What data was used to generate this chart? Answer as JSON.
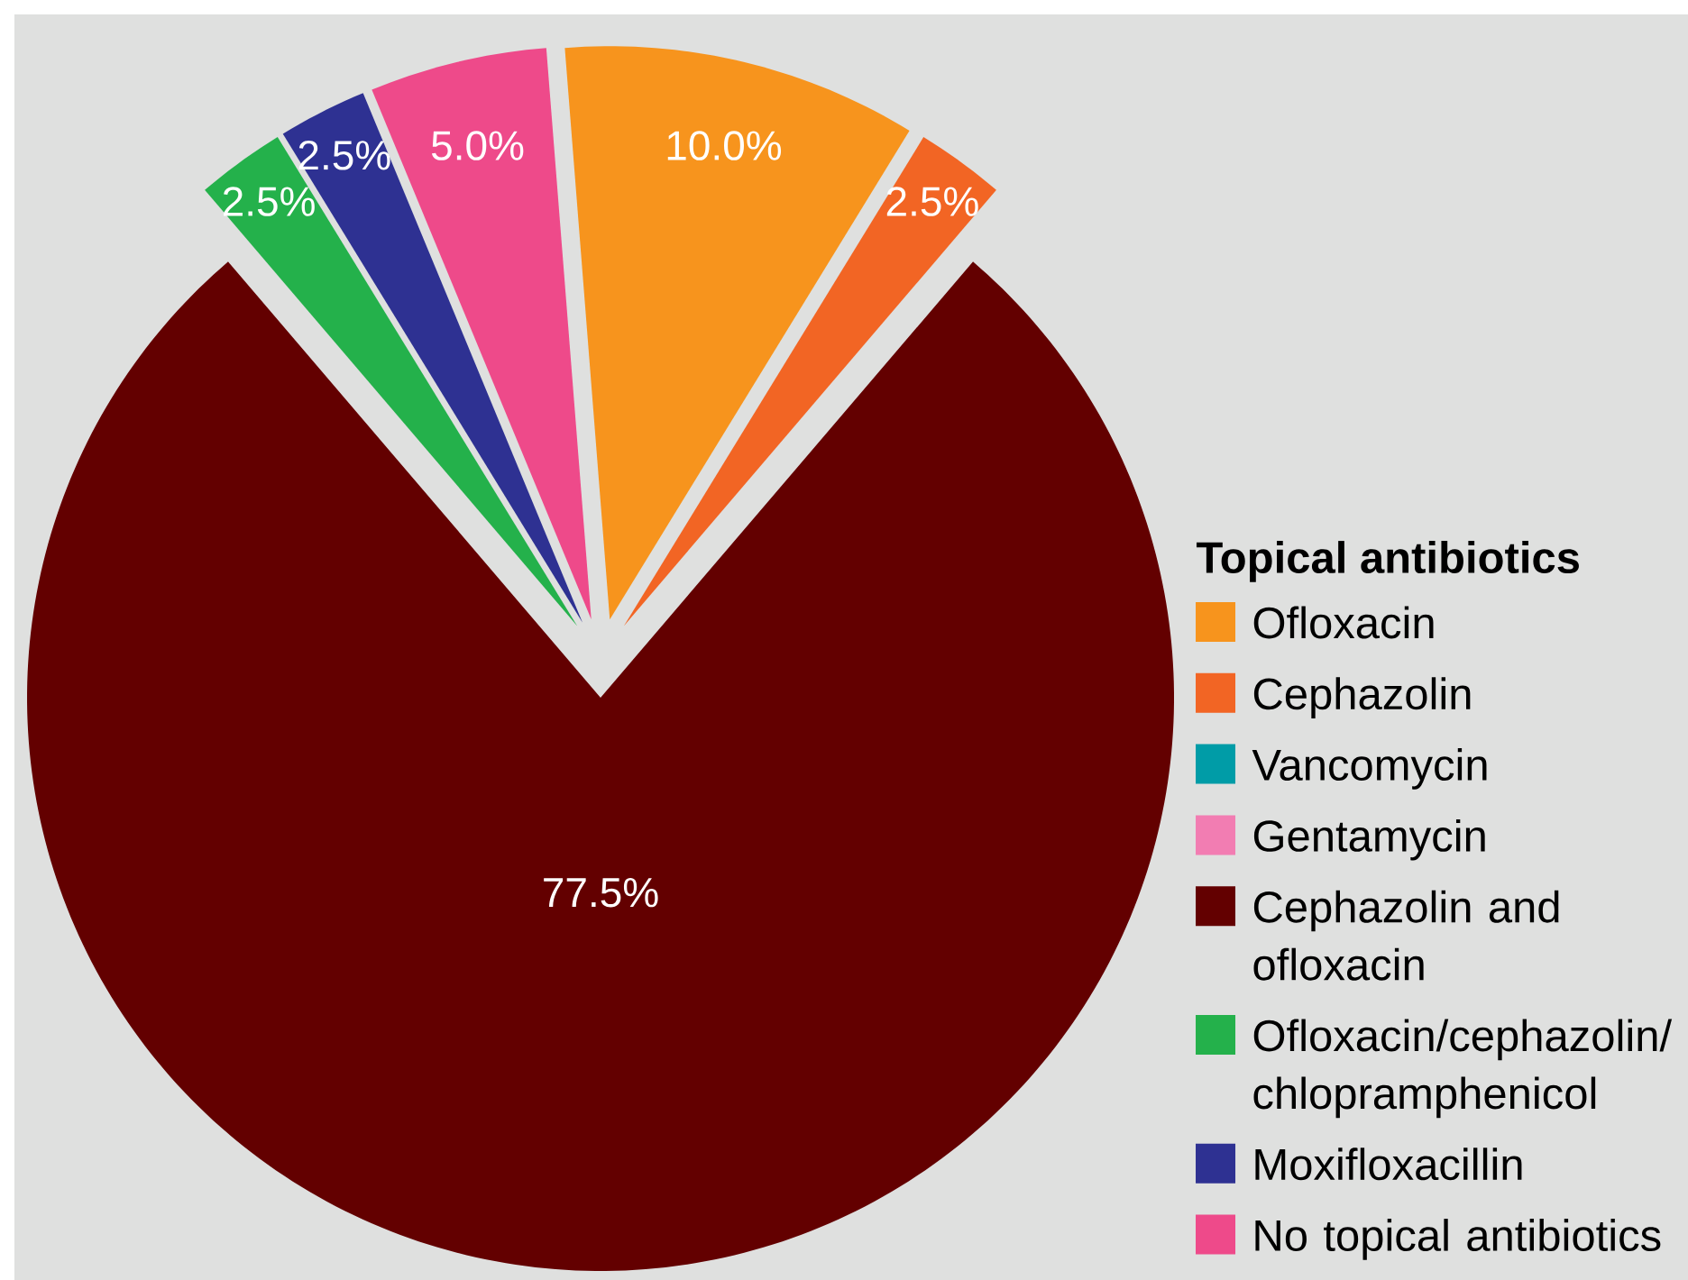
{
  "chart_data": {
    "type": "pie",
    "legend_title": "Topical antibiotics",
    "categories": [
      "Ofloxacin",
      "Cephazolin",
      "Vancomycin",
      "Gentamycin",
      "Cephazolin and ofloxacin",
      "Ofloxacin/cephazolin/chlopramphenicol",
      "Moxifloxacillin",
      "No topical antibiotics"
    ],
    "values": [
      10.0,
      2.5,
      0,
      0,
      77.5,
      2.5,
      2.5,
      5.0
    ],
    "colors": [
      "#f7941d",
      "#f26524",
      "#009ca7",
      "#f27db2",
      "#630000",
      "#24b14b",
      "#2e3192",
      "#ee4a8a"
    ],
    "value_labels": [
      "10.0%",
      "2.5%",
      null,
      null,
      "77.5%",
      "2.5%",
      "2.5%",
      "5.0%"
    ],
    "legend": "right"
  }
}
